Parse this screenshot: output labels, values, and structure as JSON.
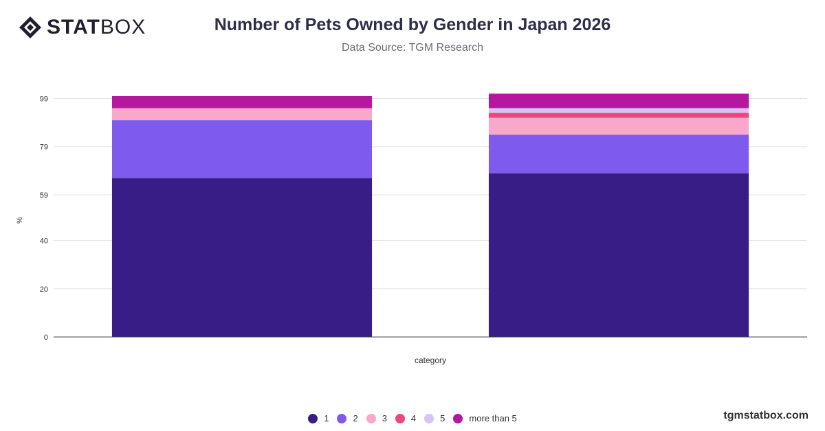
{
  "logo": {
    "bold": "STAT",
    "light": "BOX"
  },
  "title": "Number of Pets Owned by Gender in Japan 2026",
  "subtitle": "Data Source: TGM Research",
  "brand": "tgmstatbox.com",
  "chart_data": {
    "type": "bar",
    "stacked": true,
    "xlabel": "category",
    "ylabel": "%",
    "ylim": [
      0,
      100
    ],
    "yticks": [
      0,
      20,
      40,
      59,
      79,
      99
    ],
    "grid": true,
    "legend_position": "bottom",
    "categories": [
      "",
      ""
    ],
    "series": [
      {
        "name": "1",
        "color": "#371d85",
        "values": [
          66.0,
          68.0
        ]
      },
      {
        "name": "2",
        "color": "#7e5bed",
        "values": [
          24.0,
          16.0
        ]
      },
      {
        "name": "3",
        "color": "#f9a8c9",
        "values": [
          5.0,
          7.0
        ]
      },
      {
        "name": "4",
        "color": "#f0447d",
        "values": [
          0.0,
          2.0
        ]
      },
      {
        "name": "5",
        "color": "#d8c3f7",
        "values": [
          0.0,
          2.0
        ]
      },
      {
        "name": "more than 5",
        "color": "#b5179e",
        "values": [
          5.0,
          6.0
        ]
      }
    ]
  }
}
